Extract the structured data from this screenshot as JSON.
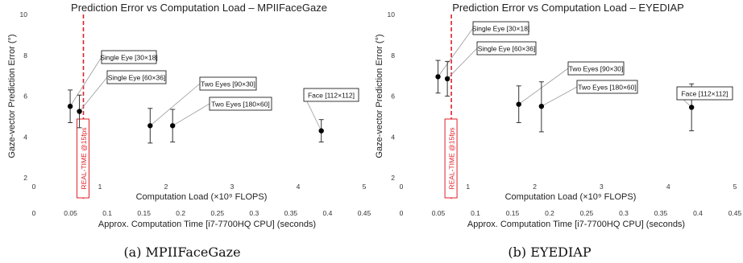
{
  "chart_data": [
    {
      "type": "scatter",
      "title": "Prediction Error vs Computation Load – MPIIFaceGaze",
      "caption": "(a) MPIIFaceGaze",
      "xlabel": "Computation Load (×10⁹ FLOPS)",
      "ylabel": "Gaze-vector Prediction Error (°)",
      "x2label": "Approx. Computation Time [i7-7700HQ CPU]  (seconds)",
      "xlim": [
        0,
        5
      ],
      "ylim": [
        2,
        10
      ],
      "x_ticks": [
        "0",
        "1",
        "2",
        "3",
        "4",
        "5"
      ],
      "y_ticks": [
        "2",
        "4",
        "6",
        "8",
        "10"
      ],
      "x2lim": [
        0,
        0.45
      ],
      "x2_ticks": [
        "0",
        "0.05",
        "0.1",
        "0.15",
        "0.2",
        "0.25",
        "0.3",
        "0.35",
        "0.4",
        "0.45"
      ],
      "realtime_x": 0.75,
      "realtime_label": "REAL-TIME @15fps",
      "grid": false,
      "points": [
        {
          "label": "Single Eye [30×18]",
          "x": 0.55,
          "y": 5.5,
          "err_low": 0.8,
          "err_high": 0.8
        },
        {
          "label": "Single Eye [60×36]",
          "x": 0.69,
          "y": 5.25,
          "err_low": 0.8,
          "err_high": 0.8
        },
        {
          "label": "Two Eyes [90×30]",
          "x": 1.76,
          "y": 4.55,
          "err_low": 0.85,
          "err_high": 0.85
        },
        {
          "label": "Two Eyes [180×60]",
          "x": 2.1,
          "y": 4.55,
          "err_low": 0.8,
          "err_high": 0.8
        },
        {
          "label": "Face [112×112]",
          "x": 4.35,
          "y": 4.3,
          "err_low": 0.55,
          "err_high": 0.55
        }
      ]
    },
    {
      "type": "scatter",
      "title": "Prediction Error vs Computation Load – EYEDIAP",
      "caption": "(b) EYEDIAP",
      "xlabel": "Computation Load (×10⁹ FLOPS)",
      "ylabel": "Gaze-vector Prediction Error (°)",
      "x2label": "Approx. Computation Time [i7-7700HQ CPU]  (seconds)",
      "xlim": [
        0,
        5
      ],
      "ylim": [
        2,
        10
      ],
      "x_ticks": [
        "0",
        "1",
        "2",
        "3",
        "4",
        "5"
      ],
      "y_ticks": [
        "2",
        "4",
        "6",
        "8",
        "10"
      ],
      "x2lim": [
        0,
        0.45
      ],
      "x2_ticks": [
        "0",
        "0.05",
        "0.1",
        "0.15",
        "0.2",
        "0.25",
        "0.3",
        "0.35",
        "0.4",
        "0.45"
      ],
      "realtime_x": 0.75,
      "realtime_label": "REAL-TIME @15fps",
      "grid": false,
      "points": [
        {
          "label": "Single Eye [30×18]",
          "x": 0.55,
          "y": 6.95,
          "err_low": 0.8,
          "err_high": 0.8
        },
        {
          "label": "Single Eye [60×36]",
          "x": 0.69,
          "y": 6.85,
          "err_low": 0.85,
          "err_high": 0.85
        },
        {
          "label": "Two Eyes [90×30]",
          "x": 1.76,
          "y": 5.6,
          "err_low": 0.9,
          "err_high": 0.9
        },
        {
          "label": "Two Eyes [180×60]",
          "x": 2.1,
          "y": 5.5,
          "err_low": 1.25,
          "err_high": 1.2
        },
        {
          "label": "Face [112×112]",
          "x": 4.35,
          "y": 5.45,
          "err_low": 1.15,
          "err_high": 1.15
        }
      ]
    }
  ]
}
